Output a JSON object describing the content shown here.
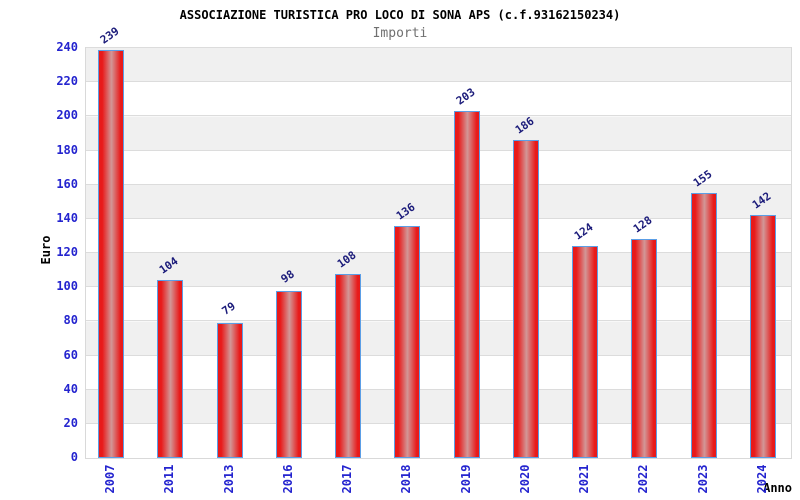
{
  "chart_data": {
    "type": "bar",
    "title": "ASSOCIAZIONE TURISTICA PRO LOCO DI SONA APS (c.f.93162150234)",
    "subtitle": "Importi",
    "xlabel": "Anno",
    "ylabel": "Euro",
    "categories": [
      "2007",
      "2011",
      "2013",
      "2016",
      "2017",
      "2018",
      "2019",
      "2020",
      "2021",
      "2022",
      "2023",
      "2024"
    ],
    "values": [
      239,
      104,
      79,
      98,
      108,
      136,
      203,
      186,
      124,
      128,
      155,
      142
    ],
    "ylim": [
      0,
      240
    ],
    "ytick_step": 20,
    "grid": true,
    "legend": "none",
    "colors": {
      "bar_edge": "#e81a1a",
      "bar_center": "#d29797",
      "bar_border": "#5b9ee6",
      "axis_tick_label": "#2424cf",
      "value_label": "#1b1b7a",
      "band_gray": "#f0f0f0",
      "band_white": "#ffffff",
      "gridline": "#dcdcdc",
      "subtitle_gray": "#707070"
    }
  }
}
